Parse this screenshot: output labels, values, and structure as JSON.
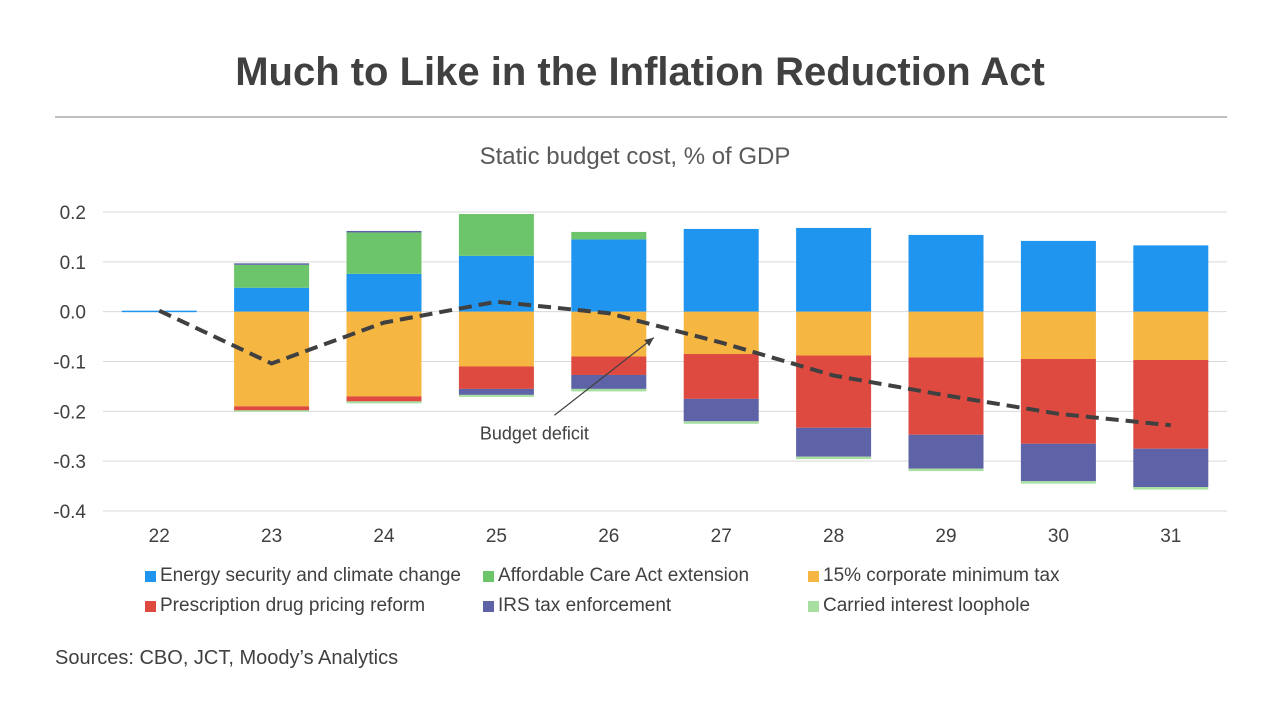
{
  "title": "Much to Like in the Inflation Reduction Act",
  "subtitle": "Static budget cost, % of GDP",
  "source": "Sources: CBO, JCT, Moody’s Analytics",
  "chart_data": {
    "type": "bar",
    "stacked": true,
    "title": "Much to Like in the Inflation Reduction Act",
    "subtitle": "Static budget cost, % of GDP",
    "categories": [
      "22",
      "23",
      "24",
      "25",
      "26",
      "27",
      "28",
      "29",
      "30",
      "31"
    ],
    "ylim": [
      -0.4,
      0.2
    ],
    "yticks": [
      0.2,
      0.1,
      0.0,
      -0.1,
      -0.2,
      -0.3,
      -0.4
    ],
    "ytick_labels": [
      "0.2",
      "0.1",
      "0.0",
      "-0.1",
      "-0.2",
      "-0.3",
      "-0.4"
    ],
    "grid": true,
    "legend_position": "bottom",
    "series": [
      {
        "name": "Energy security and climate change",
        "color": "#1f95ef",
        "values": [
          0.002,
          0.048,
          0.076,
          0.112,
          0.145,
          0.166,
          0.168,
          0.154,
          0.142,
          0.133
        ]
      },
      {
        "name": "Affordable Care Act extension",
        "color": "#6cc56a",
        "values": [
          0.0,
          0.046,
          0.083,
          0.084,
          0.015,
          0.0,
          0.0,
          0.0,
          0.0,
          0.0
        ]
      },
      {
        "name": "15% corporate minimum tax",
        "color": "#f5b642",
        "values": [
          0.0,
          -0.19,
          -0.17,
          -0.11,
          -0.09,
          -0.085,
          -0.088,
          -0.092,
          -0.095,
          -0.097
        ]
      },
      {
        "name": "Prescription drug pricing reform",
        "color": "#de4a40",
        "values": [
          0.0,
          -0.008,
          -0.01,
          -0.045,
          -0.037,
          -0.09,
          -0.145,
          -0.155,
          -0.17,
          -0.178
        ]
      },
      {
        "name": "IRS tax enforcement",
        "color": "#5e62a6",
        "values": [
          0.0,
          0.003,
          0.003,
          -0.012,
          -0.028,
          -0.045,
          -0.058,
          -0.068,
          -0.075,
          -0.077
        ]
      },
      {
        "name": "Carried interest loophole",
        "color": "#a6dfa0",
        "values": [
          0.0,
          -0.003,
          -0.004,
          -0.004,
          -0.005,
          -0.005,
          -0.005,
          -0.005,
          -0.005,
          -0.005
        ]
      }
    ],
    "line": {
      "name": "Budget deficit",
      "color": "#404040",
      "style": "dashed",
      "values": [
        0.002,
        -0.104,
        -0.022,
        0.02,
        -0.003,
        -0.062,
        -0.128,
        -0.168,
        -0.205,
        -0.228
      ]
    },
    "annotation": {
      "text": "Budget deficit",
      "category": "25",
      "value": -0.244,
      "arrow_to_category": "26",
      "arrow_to_value": -0.032
    }
  }
}
